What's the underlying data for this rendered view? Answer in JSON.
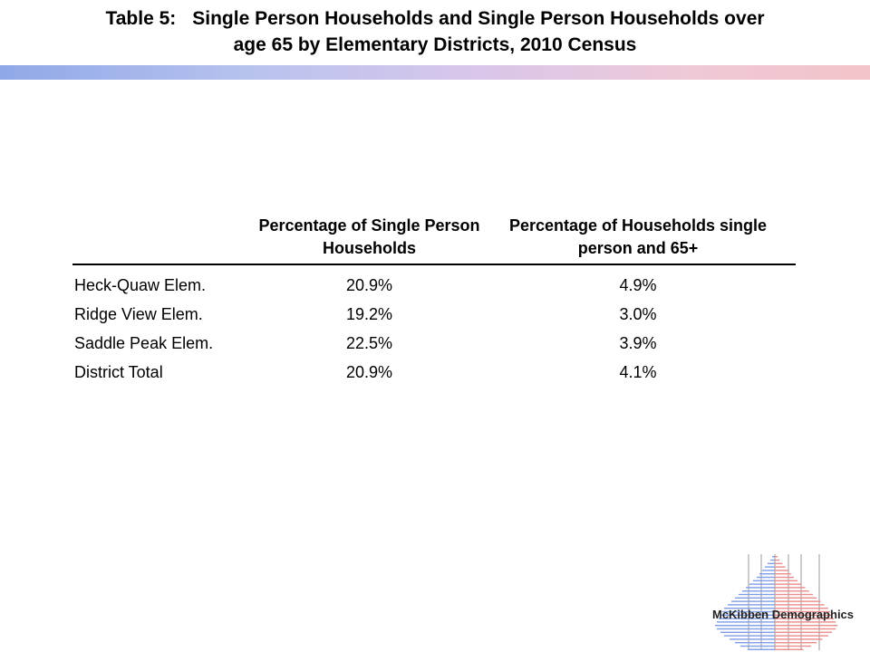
{
  "title": {
    "label": "Table 5:",
    "line1": "Single Person Households and Single Person Households over",
    "line2": "age 65 by Elementary Districts, 2010 Census"
  },
  "table": {
    "headers": {
      "col1": "Percentage of Single Person Households",
      "col2": "Percentage of Households single person and 65+"
    },
    "rows": [
      {
        "name": "Heck-Quaw Elem.",
        "single": "20.9%",
        "single65": "4.9%"
      },
      {
        "name": "Ridge View Elem.",
        "single": "19.2%",
        "single65": "3.0%"
      },
      {
        "name": "Saddle Peak Elem.",
        "single": "22.5%",
        "single65": "3.9%"
      },
      {
        "name": "District Total",
        "single": "20.9%",
        "single65": "4.1%"
      }
    ]
  },
  "logo": {
    "text": "McKibben Demographics",
    "colors": {
      "male": "#7f9ee8",
      "female": "#ec8c8c",
      "gridline": "#9a9a9a"
    }
  },
  "colors": {
    "bar_left": "#8fa8e8",
    "bar_right": "#f2c3c8"
  }
}
